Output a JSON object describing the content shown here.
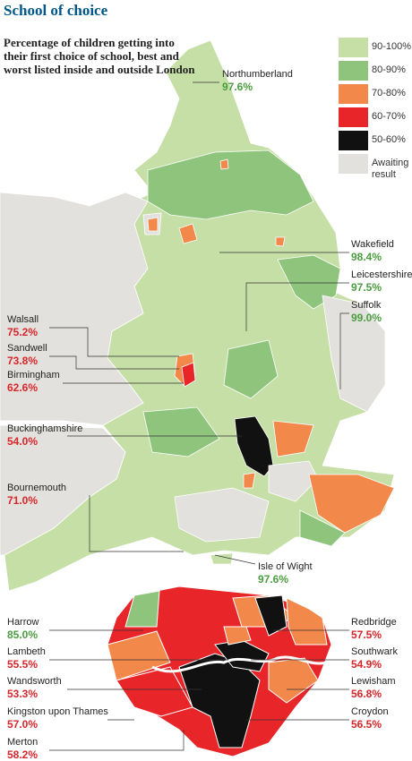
{
  "title": "School of choice",
  "subtitle": "Percentage of children getting into their first choice of school, best and worst listed inside and outside London",
  "legend": [
    {
      "label": "90-100%",
      "color": "#c5dfa6"
    },
    {
      "label": "80-90%",
      "color": "#8fc47d"
    },
    {
      "label": "70-80%",
      "color": "#f2894b"
    },
    {
      "label": "60-70%",
      "color": "#e8262a"
    },
    {
      "label": "50-60%",
      "color": "#111111"
    },
    {
      "label": "Awaiting result",
      "color": "#e3e1dd"
    }
  ],
  "england_labels": [
    {
      "name": "Northumberland",
      "value": "97.6%",
      "color": "#4a9e3f"
    },
    {
      "name": "Wakefield",
      "value": "98.4%",
      "color": "#4a9e3f"
    },
    {
      "name": "Leicestershire",
      "value": "97.5%",
      "color": "#4a9e3f"
    },
    {
      "name": "Suffolk",
      "value": "99.0%",
      "color": "#4a9e3f"
    },
    {
      "name": "Walsall",
      "value": "75.2%",
      "color": "#d9262a"
    },
    {
      "name": "Sandwell",
      "value": "73.8%",
      "color": "#d9262a"
    },
    {
      "name": "Birmingham",
      "value": "62.6%",
      "color": "#d9262a"
    },
    {
      "name": "Buckinghamshire",
      "value": "54.0%",
      "color": "#d9262a"
    },
    {
      "name": "Bournemouth",
      "value": "71.0%",
      "color": "#d9262a"
    },
    {
      "name": "Isle of Wight",
      "value": "97.6%",
      "color": "#4a9e3f"
    }
  ],
  "london_labels": [
    {
      "name": "Harrow",
      "value": "85.0%",
      "color": "#4a9e3f"
    },
    {
      "name": "Lambeth",
      "value": "55.5%",
      "color": "#d9262a"
    },
    {
      "name": "Wandsworth",
      "value": "53.3%",
      "color": "#d9262a"
    },
    {
      "name": "Kingston upon Thames",
      "value": "57.0%",
      "color": "#d9262a"
    },
    {
      "name": "Merton",
      "value": "58.2%",
      "color": "#d9262a"
    },
    {
      "name": "Redbridge",
      "value": "57.5%",
      "color": "#d9262a"
    },
    {
      "name": "Southwark",
      "value": "54.9%",
      "color": "#d9262a"
    },
    {
      "name": "Lewisham",
      "value": "56.8%",
      "color": "#d9262a"
    },
    {
      "name": "Croydon",
      "value": "56.5%",
      "color": "#d9262a"
    }
  ]
}
